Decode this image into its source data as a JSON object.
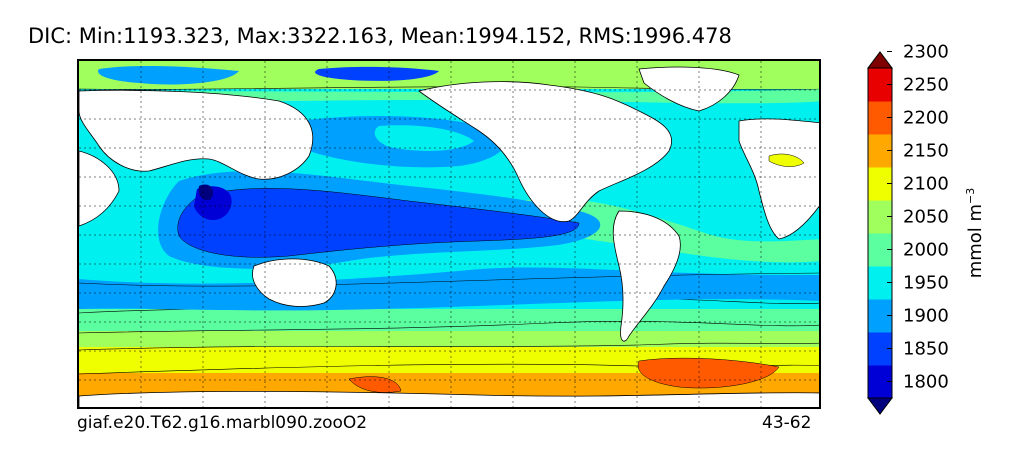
{
  "title": "DIC: Min:1193.323, Max:3322.163, Mean:1994.152, RMS:1996.478",
  "case_name": "giaf.e20.T62.g16.marbl090.zooO2",
  "years": "43-62",
  "units": {
    "base": "mmol m",
    "exponent": "−3"
  },
  "colorbar": {
    "levels": [
      1775,
      1800,
      1850,
      1900,
      1950,
      2000,
      2050,
      2100,
      2150,
      2200,
      2250,
      2300,
      2325
    ],
    "colors": [
      "#00007f",
      "#0000d6",
      "#0040ff",
      "#00a0ff",
      "#00f0f0",
      "#5cffa0",
      "#a0ff5c",
      "#f0ff00",
      "#ffa800",
      "#ff5a00",
      "#e80000",
      "#7f0000"
    ],
    "tick_labels": [
      "1800",
      "1850",
      "1900",
      "1950",
      "2000",
      "2050",
      "2100",
      "2150",
      "2200",
      "2250",
      "2300"
    ]
  },
  "map": {
    "field": "DIC",
    "projection": "global longitude-latitude",
    "grid": true,
    "land_color": "#ffffff"
  }
}
